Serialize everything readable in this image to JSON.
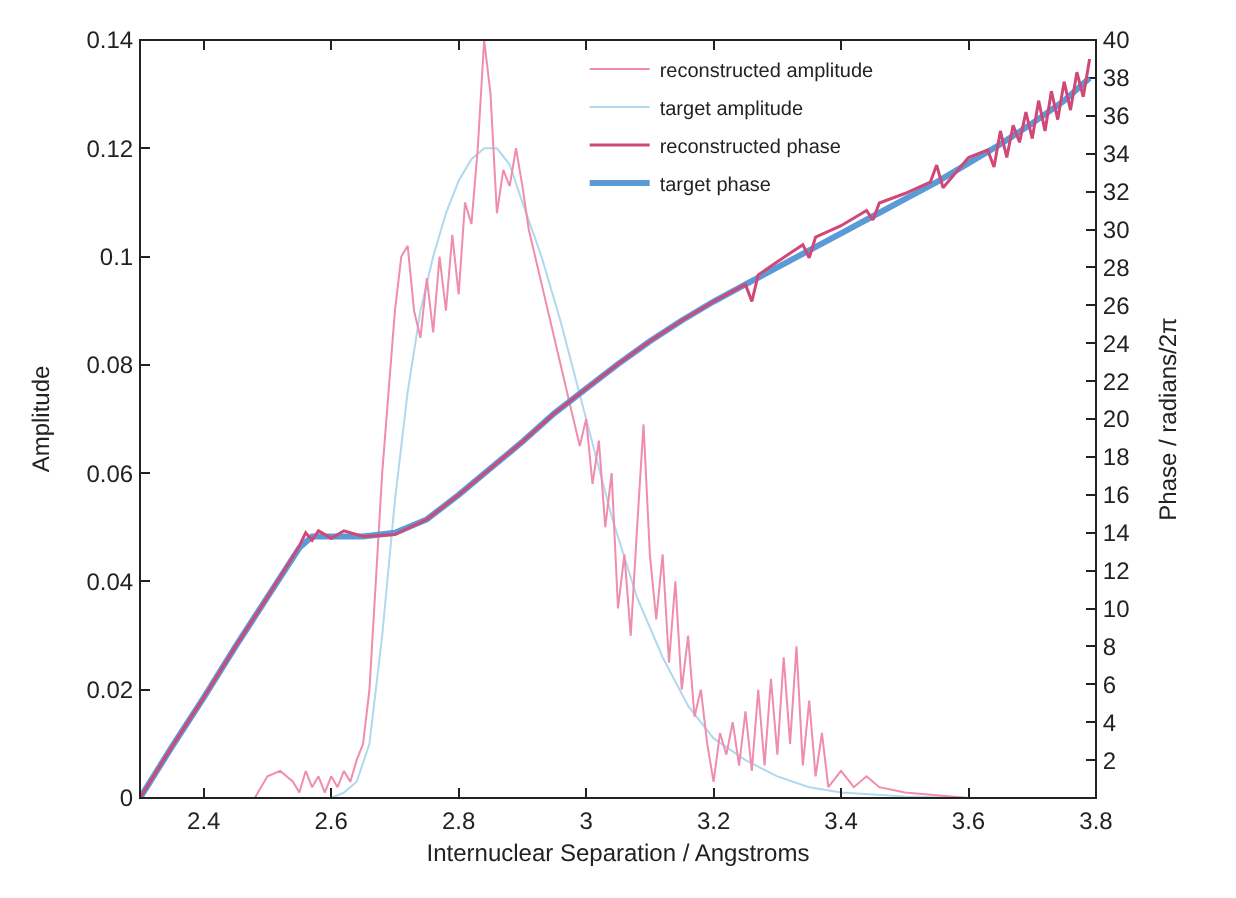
{
  "chart_data": {
    "type": "line",
    "xlabel": "Internuclear Separation / Angstroms",
    "ylabel": "Amplitude",
    "y2label": "Phase / radians/2π",
    "xlim": [
      2.3,
      3.8
    ],
    "xticks": [
      2.4,
      2.6,
      2.8,
      3,
      3.2,
      3.4,
      3.6,
      3.8
    ],
    "ylim": [
      0,
      0.14
    ],
    "yticks": [
      0,
      0.02,
      0.04,
      0.06,
      0.08,
      0.1,
      0.12,
      0.14
    ],
    "y2lim": [
      0,
      40
    ],
    "y2ticks": [
      2,
      4,
      6,
      8,
      10,
      12,
      14,
      16,
      18,
      20,
      22,
      24,
      26,
      28,
      30,
      32,
      34,
      36,
      38,
      40
    ],
    "legend": "top right",
    "marker": "none",
    "line_style": "solid",
    "series": [
      {
        "name": "reconstructed amplitude",
        "color": "#f08cac",
        "x": [
          2.48,
          2.5,
          2.52,
          2.54,
          2.55,
          2.56,
          2.57,
          2.58,
          2.59,
          2.6,
          2.61,
          2.62,
          2.63,
          2.64,
          2.65,
          2.66,
          2.67,
          2.68,
          2.69,
          2.7,
          2.71,
          2.72,
          2.73,
          2.74,
          2.75,
          2.76,
          2.77,
          2.78,
          2.79,
          2.8,
          2.81,
          2.82,
          2.83,
          2.84,
          2.85,
          2.86,
          2.87,
          2.88,
          2.89,
          2.9,
          2.91,
          2.93,
          2.95,
          2.97,
          2.99,
          3.0,
          3.01,
          3.02,
          3.03,
          3.04,
          3.05,
          3.06,
          3.07,
          3.08,
          3.09,
          3.1,
          3.11,
          3.12,
          3.13,
          3.14,
          3.15,
          3.16,
          3.17,
          3.18,
          3.19,
          3.2,
          3.21,
          3.22,
          3.23,
          3.24,
          3.25,
          3.26,
          3.27,
          3.28,
          3.29,
          3.3,
          3.31,
          3.32,
          3.33,
          3.34,
          3.35,
          3.36,
          3.37,
          3.38,
          3.4,
          3.42,
          3.44,
          3.46,
          3.5,
          3.55,
          3.6
        ],
        "values": [
          0,
          0.004,
          0.005,
          0.003,
          0.001,
          0.005,
          0.002,
          0.004,
          0.001,
          0.004,
          0.002,
          0.005,
          0.003,
          0.007,
          0.01,
          0.02,
          0.04,
          0.06,
          0.075,
          0.09,
          0.1,
          0.102,
          0.09,
          0.085,
          0.096,
          0.086,
          0.1,
          0.09,
          0.104,
          0.093,
          0.11,
          0.106,
          0.12,
          0.14,
          0.13,
          0.108,
          0.116,
          0.113,
          0.12,
          0.113,
          0.105,
          0.095,
          0.085,
          0.075,
          0.065,
          0.07,
          0.058,
          0.066,
          0.05,
          0.06,
          0.035,
          0.045,
          0.03,
          0.05,
          0.069,
          0.045,
          0.033,
          0.045,
          0.025,
          0.04,
          0.02,
          0.03,
          0.015,
          0.02,
          0.01,
          0.003,
          0.012,
          0.008,
          0.014,
          0.006,
          0.016,
          0.005,
          0.02,
          0.006,
          0.022,
          0.008,
          0.026,
          0.01,
          0.028,
          0.006,
          0.018,
          0.004,
          0.012,
          0.002,
          0.005,
          0.002,
          0.004,
          0.002,
          0.001,
          0.0005,
          0
        ]
      },
      {
        "name": "target amplitude",
        "color": "#b0d8ee",
        "x": [
          2.6,
          2.62,
          2.64,
          2.66,
          2.68,
          2.7,
          2.72,
          2.74,
          2.76,
          2.78,
          2.8,
          2.82,
          2.84,
          2.86,
          2.88,
          2.9,
          2.93,
          2.96,
          3.0,
          3.04,
          3.08,
          3.12,
          3.16,
          3.2,
          3.25,
          3.3,
          3.35,
          3.4,
          3.5,
          3.6
        ],
        "values": [
          0,
          0.001,
          0.003,
          0.01,
          0.03,
          0.055,
          0.075,
          0.09,
          0.1,
          0.108,
          0.114,
          0.118,
          0.12,
          0.12,
          0.117,
          0.11,
          0.1,
          0.088,
          0.07,
          0.052,
          0.037,
          0.026,
          0.017,
          0.011,
          0.007,
          0.004,
          0.002,
          0.001,
          0.0003,
          0
        ]
      },
      {
        "name": "reconstructed phase",
        "color": "#d04877",
        "axis": "y2",
        "x": [
          2.3,
          2.35,
          2.4,
          2.45,
          2.5,
          2.53,
          2.55,
          2.56,
          2.57,
          2.58,
          2.6,
          2.62,
          2.65,
          2.7,
          2.75,
          2.8,
          2.85,
          2.9,
          2.95,
          3.0,
          3.05,
          3.1,
          3.15,
          3.2,
          3.25,
          3.26,
          3.27,
          3.3,
          3.34,
          3.35,
          3.36,
          3.4,
          3.44,
          3.45,
          3.46,
          3.5,
          3.54,
          3.55,
          3.56,
          3.6,
          3.63,
          3.64,
          3.65,
          3.66,
          3.67,
          3.68,
          3.69,
          3.7,
          3.71,
          3.72,
          3.73,
          3.74,
          3.75,
          3.76,
          3.77,
          3.78,
          3.79
        ],
        "values": [
          0,
          2.7,
          5.3,
          8,
          10.6,
          12.2,
          13.3,
          14,
          13.6,
          14.1,
          13.7,
          14.1,
          13.8,
          13.9,
          14.7,
          16,
          17.4,
          18.8,
          20.3,
          21.6,
          22.9,
          24.1,
          25.2,
          26.2,
          27.1,
          26.2,
          27.6,
          28.3,
          29.2,
          28.5,
          29.6,
          30.2,
          31,
          30.5,
          31.4,
          31.9,
          32.5,
          33.4,
          32.2,
          33.8,
          34.2,
          33.3,
          35.2,
          33.8,
          35.5,
          34.6,
          36.2,
          34.8,
          36.8,
          35.2,
          37.3,
          35.8,
          37.8,
          36.3,
          38.3,
          37,
          39
        ]
      },
      {
        "name": "target phase",
        "color": "#5a9ad6",
        "axis": "y2",
        "x": [
          2.3,
          2.35,
          2.4,
          2.45,
          2.5,
          2.55,
          2.57,
          2.6,
          2.65,
          2.7,
          2.75,
          2.8,
          2.85,
          2.9,
          2.95,
          3.0,
          3.05,
          3.1,
          3.15,
          3.2,
          3.25,
          3.3,
          3.35,
          3.4,
          3.45,
          3.5,
          3.55,
          3.6,
          3.65,
          3.7,
          3.75,
          3.79
        ],
        "values": [
          0,
          2.7,
          5.3,
          8,
          10.6,
          13.2,
          13.8,
          13.8,
          13.8,
          14,
          14.7,
          16,
          17.4,
          18.8,
          20.3,
          21.6,
          22.9,
          24.1,
          25.2,
          26.2,
          27.1,
          28,
          28.9,
          29.8,
          30.7,
          31.6,
          32.5,
          33.5,
          34.5,
          35.6,
          36.8,
          38
        ]
      }
    ]
  }
}
